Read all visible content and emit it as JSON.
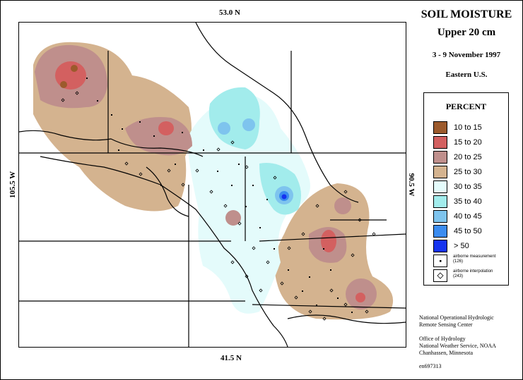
{
  "map": {
    "title_line1": "SOIL MOISTURE",
    "title_line2": "Upper 20 cm",
    "title_line3": "3 - 9 November 1997",
    "title_line4": "Eastern U.S.",
    "lat_top": "53.0 N",
    "lat_bottom": "41.5 N",
    "lon_left": "105.5 W",
    "lon_right": "90.5 W"
  },
  "legend": {
    "title": "PERCENT",
    "classes": [
      {
        "label": "10 to 15",
        "color": "#9c5a2c"
      },
      {
        "label": "15 to 20",
        "color": "#d36060"
      },
      {
        "label": "20 to 25",
        "color": "#bf8f8c"
      },
      {
        "label": "25 to 30",
        "color": "#d4b38f"
      },
      {
        "label": "30 to 35",
        "color": "#e4fbfb"
      },
      {
        "label": "35 to 40",
        "color": "#a2ecec"
      },
      {
        "label": "40 to 45",
        "color": "#7ec4ee"
      },
      {
        "label": "45 to 50",
        "color": "#3b8cf0"
      },
      {
        "label": "> 50",
        "color": "#1533f0"
      }
    ],
    "measurement_label": "airborne measurement",
    "measurement_count": "(126)",
    "interpolation_label": "airborne interpolation",
    "interpolation_count": "(243)"
  },
  "credits": {
    "line1": "National Operational Hydrologic",
    "line2": "Remote Sensing Center",
    "line3": "Office of Hydrology",
    "line4": "National Weather Service, NOAA",
    "line5": "Chanhassen, Minnesota",
    "code": "en697313"
  }
}
